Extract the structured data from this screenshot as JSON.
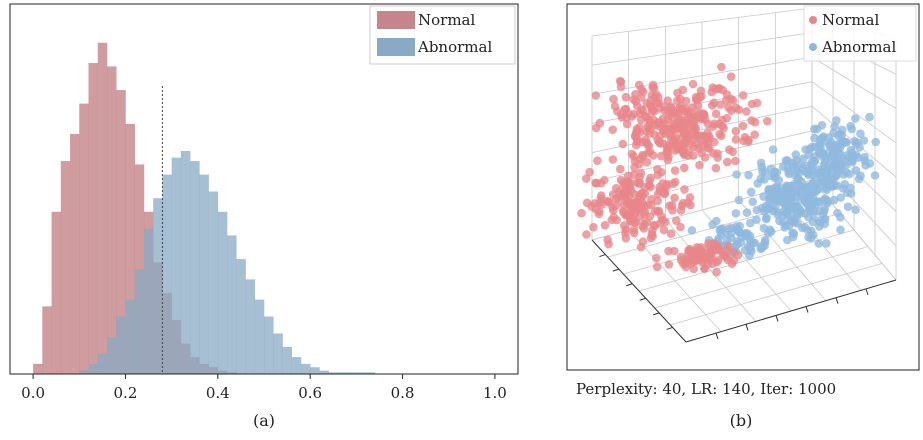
{
  "chart_data": [
    {
      "type": "histogram",
      "subcaption": "(a)",
      "xlim": [
        -0.05,
        1.05
      ],
      "xticks": [
        "0.0",
        "0.2",
        "0.4",
        "0.6",
        "0.8",
        "1.0"
      ],
      "threshold": 0.28,
      "bin_width": 0.02,
      "legend_position": "top-right",
      "series": [
        {
          "name": "Normal",
          "color": "#c4868a",
          "bin_start": 0.0,
          "counts": [
            3,
            20,
            48,
            63,
            71,
            80,
            92,
            98,
            91,
            84,
            74,
            62,
            48,
            33,
            24,
            16,
            9,
            5,
            3,
            2,
            1,
            0.5
          ]
        },
        {
          "name": "Abnormal",
          "color": "#8aa9c4",
          "bin_start": 0.1,
          "counts": [
            1,
            3,
            6,
            11,
            17,
            22,
            31,
            43,
            52,
            59,
            64,
            66,
            63,
            59,
            54,
            48,
            41,
            34,
            28,
            22,
            17,
            12,
            8,
            5,
            3,
            2,
            1,
            0.5,
            0.5,
            0.5,
            0.5,
            0.5
          ]
        }
      ]
    },
    {
      "type": "scatter3d",
      "subcaption": "(b)",
      "annotation": "Perplexity: 40, LR: 140, Iter: 1000",
      "legend_position": "top-right",
      "series": [
        {
          "name": "Normal",
          "color": "#e8868a"
        },
        {
          "name": "Abnormal",
          "color": "#8fb8de"
        }
      ]
    }
  ]
}
